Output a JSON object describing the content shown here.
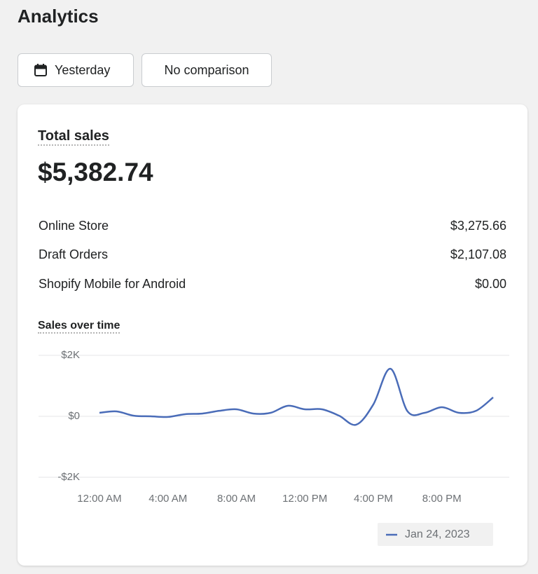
{
  "header": {
    "title": "Analytics"
  },
  "filters": {
    "date_button": "Yesterday",
    "comparison_button": "No comparison"
  },
  "card": {
    "title": "Total sales",
    "total": "$5,382.74",
    "breakdown": [
      {
        "label": "Online Store",
        "value": "$3,275.66"
      },
      {
        "label": "Draft Orders",
        "value": "$2,107.08"
      },
      {
        "label": "Shopify Mobile for Android",
        "value": "$0.00"
      }
    ]
  },
  "chart_data": {
    "type": "line",
    "title": "Sales over time",
    "x": [
      0,
      1,
      2,
      3,
      4,
      5,
      6,
      7,
      8,
      9,
      10,
      11,
      12,
      13,
      14,
      15,
      16,
      17,
      18,
      19,
      20,
      21,
      22,
      23
    ],
    "xlim": [
      0,
      23
    ],
    "xticks": [
      {
        "value": 0,
        "label": "12:00 AM"
      },
      {
        "value": 4,
        "label": "4:00 AM"
      },
      {
        "value": 8,
        "label": "8:00 AM"
      },
      {
        "value": 12,
        "label": "12:00 PM"
      },
      {
        "value": 16,
        "label": "4:00 PM"
      },
      {
        "value": 20,
        "label": "8:00 PM"
      }
    ],
    "ylim": [
      -2000,
      2000
    ],
    "yticks": [
      {
        "value": 2000,
        "label": "$2K"
      },
      {
        "value": 0,
        "label": "$0"
      },
      {
        "value": -2000,
        "label": "-$2K"
      }
    ],
    "grid": true,
    "series": [
      {
        "name": "Jan 24, 2023",
        "color": "#4a6cb8",
        "values": [
          115,
          160,
          20,
          0,
          -20,
          70,
          90,
          180,
          230,
          90,
          115,
          345,
          230,
          230,
          20,
          -275,
          390,
          1560,
          160,
          115,
          300,
          115,
          180,
          620
        ]
      }
    ]
  }
}
